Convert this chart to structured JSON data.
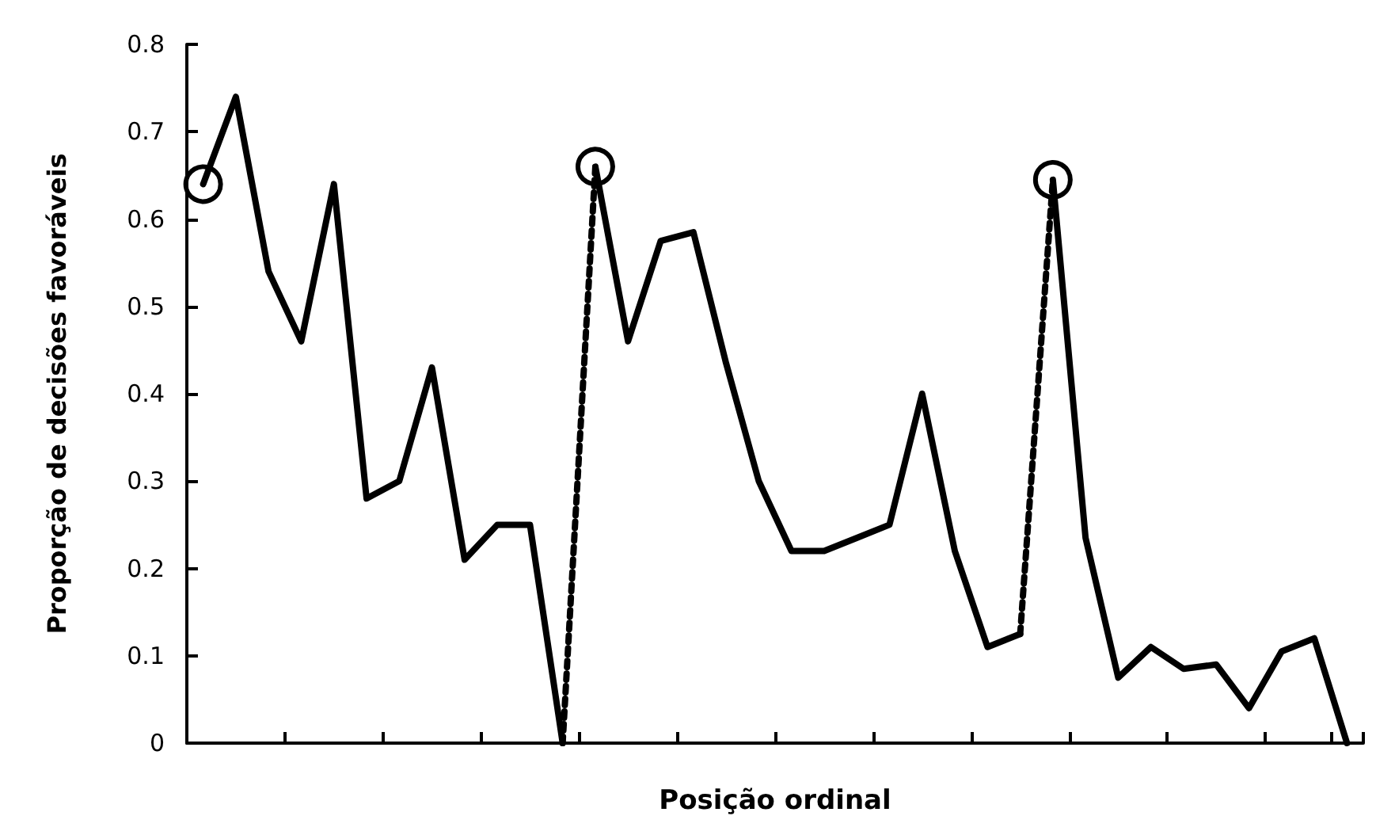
{
  "chart_data": {
    "type": "line",
    "xlabel": "Posição ordinal",
    "ylabel": "Proporção de decisões favoráveis",
    "categories": [
      null,
      null,
      null,
      null,
      null,
      null,
      null,
      null,
      null,
      null,
      null,
      null,
      null,
      null,
      null,
      null,
      null,
      null,
      null,
      null,
      null,
      null,
      null,
      null,
      null,
      null,
      null,
      null,
      null,
      null,
      null,
      null,
      null,
      null,
      null,
      null
    ],
    "ylim": [
      0,
      0.8
    ],
    "yticks": [
      0,
      0.1,
      0.2,
      0.3,
      0.4,
      0.5,
      0.6,
      0.7,
      0.8
    ],
    "tick_labels": "y",
    "grid": false,
    "marker": "none",
    "line_style": "solid",
    "series": [
      {
        "color": "#000000",
        "values": [
          0.64,
          0.74,
          0.54,
          0.46,
          0.64,
          0.28,
          0.3,
          0.43,
          0.21,
          0.25,
          0.25,
          0,
          null,
          null,
          null,
          null,
          null,
          null,
          null,
          null,
          null,
          null,
          null,
          null,
          null,
          null,
          null,
          null,
          null,
          null,
          null,
          null,
          null,
          null,
          null,
          null
        ]
      },
      {
        "color": "#000000",
        "values": [
          null,
          null,
          null,
          null,
          null,
          null,
          null,
          null,
          null,
          null,
          null,
          null,
          0.66,
          0.46,
          0.575,
          0.585,
          0.435,
          0.3,
          0.22,
          0.22,
          0.235,
          0.25,
          0.4,
          0.22,
          0.11,
          0.125,
          null,
          null,
          null,
          null,
          null,
          null,
          null,
          null,
          null,
          null
        ]
      },
      {
        "color": "#000000",
        "values": [
          null,
          null,
          null,
          null,
          null,
          null,
          null,
          null,
          null,
          null,
          null,
          null,
          null,
          null,
          null,
          null,
          null,
          null,
          null,
          null,
          null,
          null,
          null,
          null,
          null,
          null,
          0.645,
          0.235,
          0.075,
          0.11,
          0.085,
          0.09,
          0.04,
          0.105,
          0.12,
          0
        ]
      },
      {
        "color": "#000000",
        "line_style": "dotted",
        "values": [
          null,
          null,
          null,
          null,
          null,
          null,
          null,
          null,
          null,
          null,
          null,
          0,
          0.66,
          null,
          null,
          null,
          null,
          null,
          null,
          null,
          null,
          null,
          null,
          null,
          null,
          null,
          null,
          null,
          null,
          null,
          null,
          null,
          null,
          null,
          null,
          null
        ]
      },
      {
        "color": "#000000",
        "line_style": "dotted",
        "values": [
          null,
          null,
          null,
          null,
          null,
          null,
          null,
          null,
          null,
          null,
          null,
          null,
          null,
          null,
          null,
          null,
          null,
          null,
          null,
          null,
          null,
          null,
          null,
          null,
          null,
          0.125,
          0.645,
          null,
          null,
          null,
          null,
          null,
          null,
          null,
          null,
          null
        ]
      },
      {
        "type": "scatter",
        "color": "#000000",
        "marker": "circle",
        "values": [
          0.64,
          null,
          null,
          null,
          null,
          null,
          null,
          null,
          null,
          null,
          null,
          null,
          0.66,
          null,
          null,
          null,
          null,
          null,
          null,
          null,
          null,
          null,
          null,
          null,
          null,
          null,
          0.645,
          null,
          null,
          null,
          null,
          null,
          null,
          null,
          null,
          null
        ]
      }
    ]
  }
}
